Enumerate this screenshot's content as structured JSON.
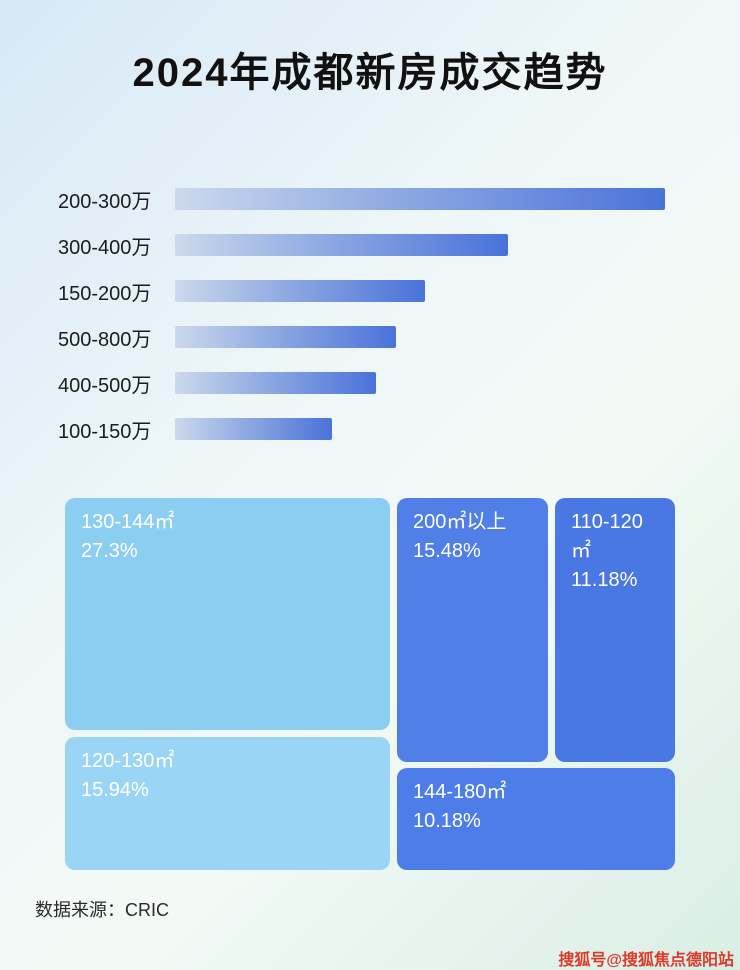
{
  "page": {
    "title": "2024年成都新房成交趋势",
    "source": "数据来源：CRIC",
    "watermark": "搜狐号@搜狐焦点德阳站"
  },
  "colors": {
    "bar_gradient_start": "#ccd9ec",
    "bar_gradient_end": "#4a72da",
    "treemap_light_blue": "#8ccdf2",
    "treemap_light_blue_2": "#9ad5f5",
    "treemap_royal_blue": "#4f7fe7",
    "watermark_red": "#dd3a2b",
    "background_top": "#d6e8f6",
    "background_bottom": "#d9eee5"
  },
  "chart_data": [
    {
      "type": "bar",
      "orientation": "horizontal",
      "title": "2024年成都新房成交趋势",
      "categories": [
        "200-300万",
        "300-400万",
        "150-200万",
        "500-800万",
        "400-500万",
        "100-150万"
      ],
      "values": [
        100,
        68,
        51,
        45,
        41,
        32
      ],
      "value_note": "relative bar length as % of longest bar; no numeric axis shown in image",
      "xlabel": "",
      "ylabel": "",
      "grid": false,
      "legend": false
    },
    {
      "type": "treemap",
      "items": [
        {
          "label": "130-144㎡",
          "value_pct": 27.3,
          "value_label": "27.3%"
        },
        {
          "label": "200㎡以上",
          "value_pct": 15.48,
          "value_label": "15.48%"
        },
        {
          "label": "110-120㎡",
          "value_pct": 11.18,
          "value_label": "11.18%"
        },
        {
          "label": "120-130㎡",
          "value_pct": 15.94,
          "value_label": "15.94%"
        },
        {
          "label": "144-180㎡",
          "value_pct": 10.18,
          "value_label": "10.18%"
        }
      ]
    }
  ]
}
